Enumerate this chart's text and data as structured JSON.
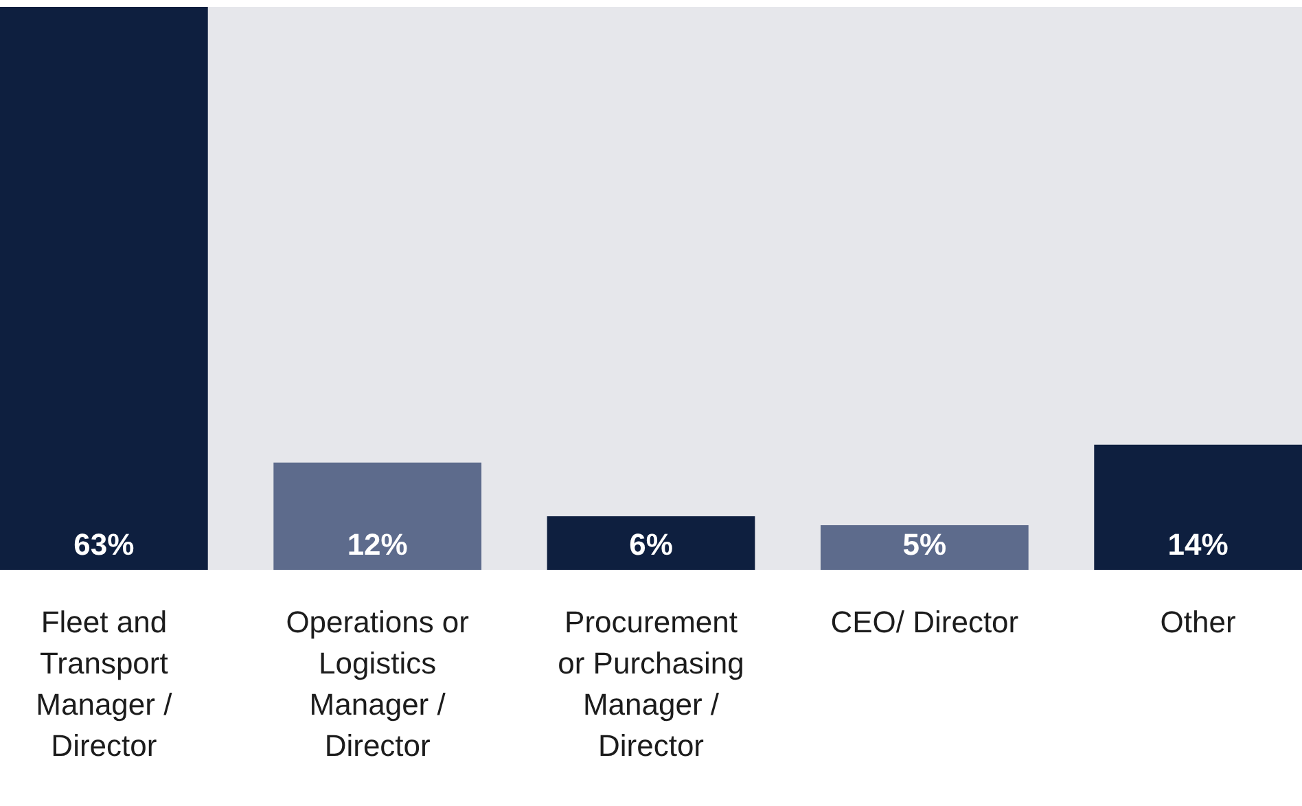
{
  "chart_data": {
    "type": "bar",
    "categories": [
      "Fleet and Transport Manager / Director",
      "Operations or Logistics Manager / Director",
      "Procurement or Purchasing Manager / Director",
      "CEO/ Director",
      "Other"
    ],
    "values": [
      63,
      12,
      6,
      5,
      14
    ],
    "colors": [
      "#0e1f3f",
      "#5d6b8c",
      "#0e1f3f",
      "#5d6b8c",
      "#0e1f3f"
    ],
    "value_labels": [
      "63%",
      "12%",
      "6%",
      "5%",
      "14%"
    ],
    "grid": false
  }
}
